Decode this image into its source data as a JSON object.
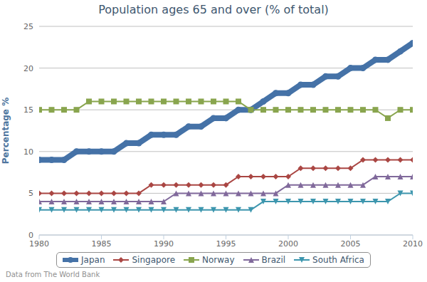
{
  "chart_data": {
    "type": "line",
    "title": "Population ages 65 and over (% of total)",
    "y_label": "Percentage %",
    "source": "Data from The World Bank",
    "x": [
      1980,
      1981,
      1982,
      1983,
      1984,
      1985,
      1986,
      1987,
      1988,
      1989,
      1990,
      1991,
      1992,
      1993,
      1994,
      1995,
      1996,
      1997,
      1998,
      1999,
      2000,
      2001,
      2002,
      2003,
      2004,
      2005,
      2006,
      2007,
      2008,
      2009,
      2010
    ],
    "xlim": [
      1980,
      2010
    ],
    "xticks": [
      1980,
      1985,
      1990,
      1995,
      2000,
      2005,
      2010
    ],
    "ylim": [
      0,
      25
    ],
    "yticks": [
      0,
      5,
      10,
      15,
      20,
      25
    ],
    "grid": true,
    "legend": "bottom",
    "series": [
      {
        "name": "Japan",
        "color": "#4572a7",
        "marker": "circle",
        "line_style": "bold",
        "values": [
          9,
          9,
          9,
          10,
          10,
          10,
          10,
          11,
          11,
          12,
          12,
          12,
          13,
          13,
          14,
          14,
          15,
          15,
          16,
          17,
          17,
          18,
          18,
          19,
          19,
          20,
          20,
          21,
          21,
          22,
          23
        ]
      },
      {
        "name": "Singapore",
        "color": "#aa4643",
        "marker": "diamond",
        "line_style": "solid",
        "values": [
          5,
          5,
          5,
          5,
          5,
          5,
          5,
          5,
          5,
          6,
          6,
          6,
          6,
          6,
          6,
          6,
          7,
          7,
          7,
          7,
          7,
          8,
          8,
          8,
          8,
          8,
          9,
          9,
          9,
          9,
          9
        ]
      },
      {
        "name": "Norway",
        "color": "#89a54e",
        "marker": "square",
        "line_style": "solid",
        "values": [
          15,
          15,
          15,
          15,
          16,
          16,
          16,
          16,
          16,
          16,
          16,
          16,
          16,
          16,
          16,
          16,
          16,
          15,
          15,
          15,
          15,
          15,
          15,
          15,
          15,
          15,
          15,
          15,
          14,
          15,
          15
        ]
      },
      {
        "name": "Brazil",
        "color": "#80699b",
        "marker": "triangle",
        "line_style": "solid",
        "values": [
          4,
          4,
          4,
          4,
          4,
          4,
          4,
          4,
          4,
          4,
          4,
          5,
          5,
          5,
          5,
          5,
          5,
          5,
          5,
          5,
          6,
          6,
          6,
          6,
          6,
          6,
          6,
          7,
          7,
          7,
          7
        ]
      },
      {
        "name": "South Africa",
        "color": "#3d96ae",
        "marker": "triangle-down",
        "line_style": "solid",
        "values": [
          3,
          3,
          3,
          3,
          3,
          3,
          3,
          3,
          3,
          3,
          3,
          3,
          3,
          3,
          3,
          3,
          3,
          3,
          4,
          4,
          4,
          4,
          4,
          4,
          4,
          4,
          4,
          4,
          4,
          5,
          5
        ]
      }
    ]
  }
}
